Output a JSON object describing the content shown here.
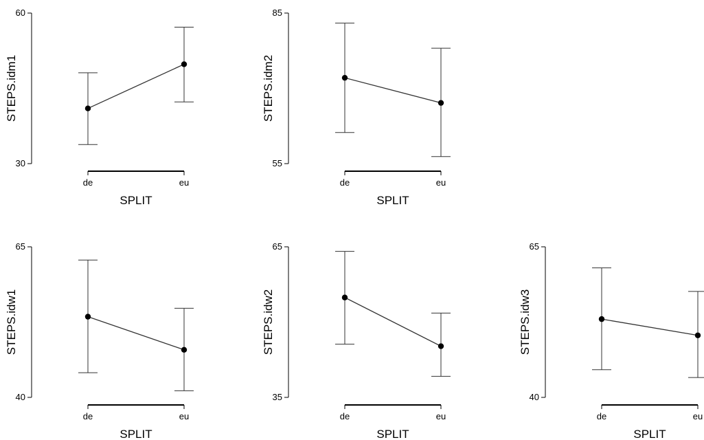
{
  "chart_data": [
    {
      "type": "line",
      "xlabel": "SPLIT",
      "ylabel": "STEPS.idm1",
      "categories": [
        "de",
        "eu"
      ],
      "ylim": [
        30,
        60
      ],
      "yticks": [
        "30",
        "60"
      ],
      "series": [
        {
          "values": [
            41,
            49.8
          ],
          "error_low": [
            33.8,
            42.3
          ],
          "error_high": [
            48.1,
            57.2
          ]
        }
      ]
    },
    {
      "type": "line",
      "xlabel": "SPLIT",
      "ylabel": "STEPS.idm2",
      "categories": [
        "de",
        "eu"
      ],
      "ylim": [
        55,
        85
      ],
      "yticks": [
        "55",
        "85"
      ],
      "series": [
        {
          "values": [
            72.1,
            67.1
          ],
          "error_low": [
            61.2,
            56.4
          ],
          "error_high": [
            83,
            78
          ]
        }
      ]
    },
    {
      "type": "line",
      "xlabel": "SPLIT",
      "ylabel": "STEPS.idw1",
      "categories": [
        "de",
        "eu"
      ],
      "ylim": [
        40,
        65
      ],
      "yticks": [
        "40",
        "65"
      ],
      "series": [
        {
          "values": [
            53.4,
            47.9
          ],
          "error_low": [
            44.1,
            41.1
          ],
          "error_high": [
            62.8,
            54.8
          ]
        }
      ]
    },
    {
      "type": "line",
      "xlabel": "SPLIT",
      "ylabel": "STEPS.idw2",
      "categories": [
        "de",
        "eu"
      ],
      "ylim": [
        35,
        65
      ],
      "yticks": [
        "35",
        "65"
      ],
      "series": [
        {
          "values": [
            54.9,
            45.2
          ],
          "error_low": [
            45.6,
            39.2
          ],
          "error_high": [
            64.1,
            51.8
          ]
        }
      ]
    },
    {
      "type": "line",
      "xlabel": "SPLIT",
      "ylabel": "STEPS.idw3",
      "categories": [
        "de",
        "eu"
      ],
      "ylim": [
        40,
        65
      ],
      "yticks": [
        "40",
        "65"
      ],
      "series": [
        {
          "values": [
            53,
            50.3
          ],
          "error_low": [
            44.6,
            43.3
          ],
          "error_high": [
            61.5,
            57.6
          ]
        }
      ]
    }
  ]
}
